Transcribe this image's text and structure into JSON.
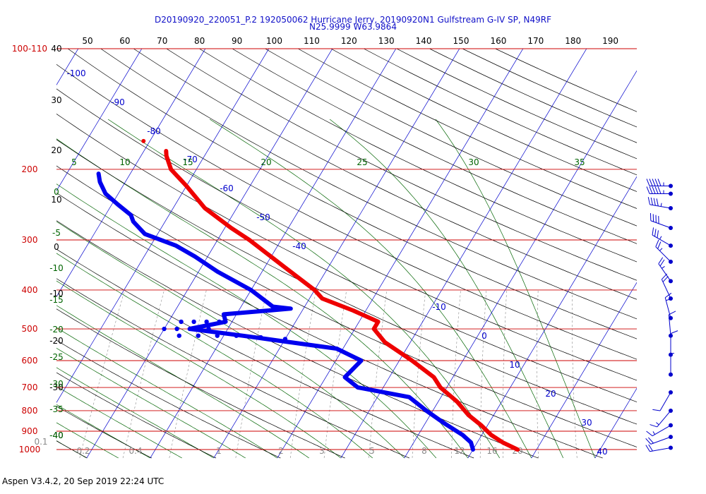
{
  "title_line1": "D20190920_220051_P.2 192050062 Hurricane Jerry, 20190920N1 Gulfstream G-IV SP, N49RF",
  "title_line2": "N25.9999 W63.9864",
  "footer": "Aspen V3.4.2, 20 Sep 2019  22:24 UTC",
  "colors": {
    "isobar": "#cc0000",
    "isotherm": "#0000cc",
    "dry_adiabat": "#000000",
    "moist_adiabat": "#006400",
    "mixing_ratio": "#8a8a8a",
    "temperature": "#ee0000",
    "dewpoint": "#0000ee",
    "wind": "#0000cc"
  },
  "chart_data": {
    "type": "scatter",
    "subtype": "skew-T log-P diagram",
    "pressure_labels": [
      "100-110",
      "200",
      "300",
      "400",
      "500",
      "600",
      "700",
      "800",
      "900",
      "1000"
    ],
    "pressure_levels": [
      100,
      200,
      300,
      400,
      500,
      600,
      700,
      800,
      900,
      1000
    ],
    "top_temperature_labels": [
      "50",
      "60",
      "70",
      "80",
      "90",
      "100",
      "110",
      "120",
      "130",
      "140",
      "150",
      "160",
      "170",
      "180",
      "190"
    ],
    "left_temperature_labels": [
      "40",
      "30",
      "20",
      "10",
      "0",
      "-10",
      "-20",
      "-30",
      "-40"
    ],
    "isotherm_labels": [
      "-100",
      "-90",
      "-80",
      "-70",
      "-60",
      "-50",
      "-40",
      "-10",
      "0",
      "10",
      "20",
      "30",
      "40"
    ],
    "moist_labels": [
      "5",
      "10",
      "15",
      "20",
      "25",
      "30",
      "35"
    ],
    "moist_left_labels": [
      "0",
      "-5",
      "-10",
      "-15",
      "-20",
      "-25",
      "-30",
      "-35",
      "-40"
    ],
    "mixing_ratio_labels": [
      "0.1",
      "0.2",
      "0.4",
      "1",
      "2",
      "3",
      "5",
      "8",
      "12",
      "16",
      "20"
    ],
    "temperature_profile": [
      {
        "p": 180,
        "t": -56.5
      },
      {
        "p": 185,
        "t": -56
      },
      {
        "p": 200,
        "t": -54
      },
      {
        "p": 220,
        "t": -50
      },
      {
        "p": 250,
        "t": -45
      },
      {
        "p": 280,
        "t": -39
      },
      {
        "p": 300,
        "t": -35
      },
      {
        "p": 350,
        "t": -27
      },
      {
        "p": 400,
        "t": -20
      },
      {
        "p": 420,
        "t": -18
      },
      {
        "p": 450,
        "t": -12
      },
      {
        "p": 480,
        "t": -7
      },
      {
        "p": 500,
        "t": -7
      },
      {
        "p": 540,
        "t": -4
      },
      {
        "p": 600,
        "t": 2
      },
      {
        "p": 660,
        "t": 7
      },
      {
        "p": 700,
        "t": 9
      },
      {
        "p": 760,
        "t": 13
      },
      {
        "p": 820,
        "t": 16
      },
      {
        "p": 870,
        "t": 19
      },
      {
        "p": 920,
        "t": 21.5
      },
      {
        "p": 960,
        "t": 24
      },
      {
        "p": 1000,
        "t": 27
      }
    ],
    "dewpoint_profile": [
      {
        "p": 205,
        "t": -65
      },
      {
        "p": 215,
        "t": -64
      },
      {
        "p": 230,
        "t": -62
      },
      {
        "p": 245,
        "t": -59
      },
      {
        "p": 260,
        "t": -56
      },
      {
        "p": 270,
        "t": -55
      },
      {
        "p": 290,
        "t": -52
      },
      {
        "p": 310,
        "t": -46
      },
      {
        "p": 330,
        "t": -42
      },
      {
        "p": 360,
        "t": -37
      },
      {
        "p": 400,
        "t": -30
      },
      {
        "p": 440,
        "t": -25
      },
      {
        "p": 445,
        "t": -22
      },
      {
        "p": 460,
        "t": -32
      },
      {
        "p": 480,
        "t": -31
      },
      {
        "p": 500,
        "t": -36
      },
      {
        "p": 520,
        "t": -27
      },
      {
        "p": 560,
        "t": -11
      },
      {
        "p": 600,
        "t": -6
      },
      {
        "p": 660,
        "t": -7
      },
      {
        "p": 700,
        "t": -4
      },
      {
        "p": 740,
        "t": 5
      },
      {
        "p": 800,
        "t": 9
      },
      {
        "p": 860,
        "t": 13
      },
      {
        "p": 920,
        "t": 17
      },
      {
        "p": 960,
        "t": 19
      },
      {
        "p": 1000,
        "t": 20
      }
    ],
    "scattered_moisture_points": [
      {
        "p": 480,
        "t": -38
      },
      {
        "p": 480,
        "t": -36
      },
      {
        "p": 480,
        "t": -34
      },
      {
        "p": 480,
        "t": -32
      },
      {
        "p": 500,
        "t": -40
      },
      {
        "p": 500,
        "t": -38
      },
      {
        "p": 500,
        "t": -35
      },
      {
        "p": 500,
        "t": -33
      },
      {
        "p": 520,
        "t": -37
      },
      {
        "p": 520,
        "t": -34
      },
      {
        "p": 520,
        "t": -31
      },
      {
        "p": 520,
        "t": -28
      },
      {
        "p": 525,
        "t": -24
      },
      {
        "p": 530,
        "t": -20
      }
    ],
    "wind_barbs": [
      {
        "p": 220,
        "speed": 55,
        "dir": 270
      },
      {
        "p": 230,
        "speed": 55,
        "dir": 270
      },
      {
        "p": 250,
        "speed": 45,
        "dir": 260
      },
      {
        "p": 280,
        "speed": 40,
        "dir": 250
      },
      {
        "p": 310,
        "speed": 35,
        "dir": 240
      },
      {
        "p": 340,
        "speed": 25,
        "dir": 225
      },
      {
        "p": 380,
        "speed": 25,
        "dir": 215
      },
      {
        "p": 420,
        "speed": 20,
        "dir": 205
      },
      {
        "p": 470,
        "speed": 15,
        "dir": 195
      },
      {
        "p": 520,
        "speed": 10,
        "dir": 185
      },
      {
        "p": 580,
        "speed": 10,
        "dir": 180
      },
      {
        "p": 650,
        "speed": 5,
        "dir": 180
      },
      {
        "p": 720,
        "speed": 10,
        "dir": 330
      },
      {
        "p": 800,
        "speed": 15,
        "dir": 320
      },
      {
        "p": 870,
        "speed": 15,
        "dir": 300
      },
      {
        "p": 930,
        "speed": 20,
        "dir": 290
      },
      {
        "p": 990,
        "speed": 20,
        "dir": 280
      }
    ]
  }
}
